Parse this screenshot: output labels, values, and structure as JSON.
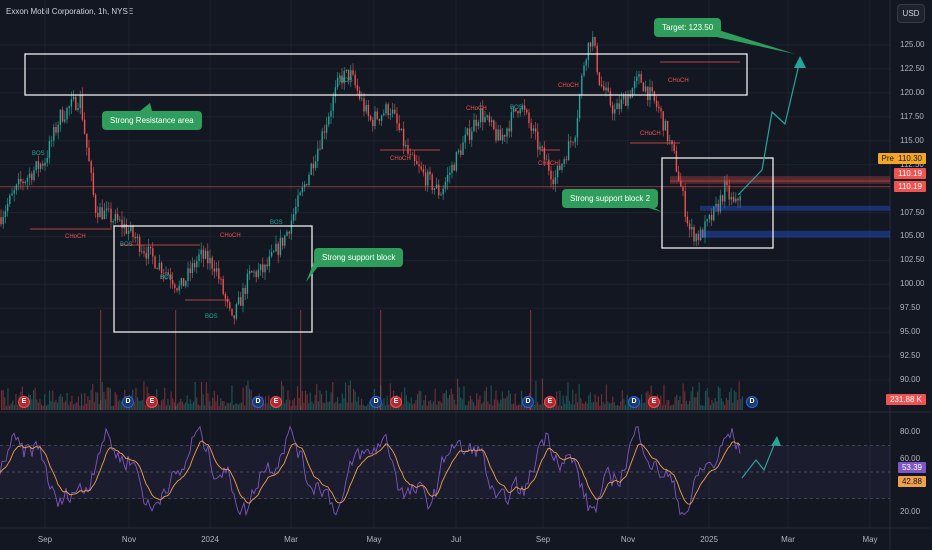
{
  "header": {
    "title": "Exxon Mobil Corporation, 1h, NYSE",
    "currency": "USD"
  },
  "price_axis": [
    "125.00",
    "122.50",
    "120.00",
    "117.50",
    "115.00",
    "112.50",
    "110.00",
    "107.50",
    "105.00",
    "102.50",
    "100.00",
    "97.50",
    "95.00",
    "92.50",
    "90.00"
  ],
  "rsi_axis": [
    "80.00",
    "60.00",
    "40.00",
    "20.00"
  ],
  "time_axis": [
    "Sep",
    "Nov",
    "2024",
    "Mar",
    "May",
    "Jul",
    "Sep",
    "Nov",
    "2025",
    "Mar",
    "May"
  ],
  "price_tags": {
    "pre_label": "Pre",
    "pre_value": "110.30",
    "last_1": "110.19",
    "last_2": "110.19",
    "volume": "231.88 K",
    "rsi_1": "53.39",
    "rsi_2": "42.88"
  },
  "callouts": {
    "resistance": "Strong Resistance area",
    "support": "Strong support block",
    "support2": "Strong support block 2",
    "target": "Target: 123.50"
  },
  "markers": {
    "bos": "BOS",
    "choch": "CHoCH"
  },
  "badges": [
    "E",
    "D",
    "E",
    "D",
    "E",
    "D",
    "E",
    "D",
    "E",
    "D",
    "E",
    "D"
  ],
  "colors": {
    "bg": "#131722",
    "up": "#26a69a",
    "down": "#ef5350",
    "rsi": "#7e57c2",
    "rsi_ma": "#f0a04b",
    "callout": "#2f9e5c",
    "box": "#ffffff"
  }
}
